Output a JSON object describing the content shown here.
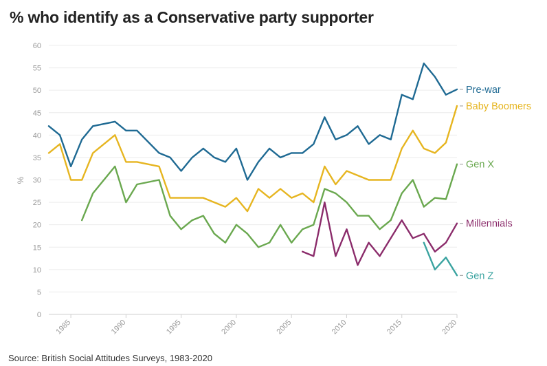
{
  "title": "% who identify as a Conservative party supporter",
  "source": "Source: British Social Attitudes Surveys, 1983-2020",
  "chart_data": {
    "type": "line",
    "title": "% who identify as a Conservative party supporter",
    "xlabel": "",
    "ylabel": "%",
    "xlim": [
      1983,
      2020
    ],
    "ylim": [
      0,
      60
    ],
    "grid": true,
    "legend": "direct labels at line ends (right)",
    "x_ticks": [
      1985,
      1990,
      1995,
      2000,
      2005,
      2010,
      2015,
      2020
    ],
    "y_ticks": [
      0,
      5,
      10,
      15,
      20,
      25,
      30,
      35,
      40,
      45,
      50,
      55,
      60
    ],
    "series": [
      {
        "name": "Pre-war",
        "color": "#1f6a93",
        "points": [
          [
            1983,
            42
          ],
          [
            1984,
            40
          ],
          [
            1985,
            33
          ],
          [
            1986,
            39
          ],
          [
            1987,
            42
          ],
          [
            1989,
            43
          ],
          [
            1990,
            41
          ],
          [
            1991,
            41
          ],
          [
            1993,
            36
          ],
          [
            1994,
            35
          ],
          [
            1995,
            32
          ],
          [
            1996,
            35
          ],
          [
            1997,
            37
          ],
          [
            1998,
            35
          ],
          [
            1999,
            34
          ],
          [
            2000,
            37
          ],
          [
            2001,
            30
          ],
          [
            2002,
            34
          ],
          [
            2003,
            37
          ],
          [
            2004,
            35
          ],
          [
            2005,
            36
          ],
          [
            2006,
            36
          ],
          [
            2007,
            38
          ],
          [
            2008,
            44
          ],
          [
            2009,
            39
          ],
          [
            2010,
            40
          ],
          [
            2011,
            42
          ],
          [
            2012,
            38
          ],
          [
            2013,
            40
          ],
          [
            2014,
            39
          ],
          [
            2015,
            49
          ],
          [
            2016,
            48
          ],
          [
            2017,
            56
          ],
          [
            2018,
            53
          ],
          [
            2019,
            49
          ],
          [
            2020,
            50.2
          ]
        ]
      },
      {
        "name": "Baby Boomers",
        "color": "#e6b520",
        "points": [
          [
            1983,
            36
          ],
          [
            1984,
            38
          ],
          [
            1985,
            30
          ],
          [
            1986,
            30
          ],
          [
            1987,
            36
          ],
          [
            1989,
            40
          ],
          [
            1990,
            34
          ],
          [
            1991,
            34
          ],
          [
            1993,
            33
          ],
          [
            1994,
            26
          ],
          [
            1995,
            26
          ],
          [
            1996,
            26
          ],
          [
            1997,
            26
          ],
          [
            1998,
            25
          ],
          [
            1999,
            24
          ],
          [
            2000,
            26
          ],
          [
            2001,
            23
          ],
          [
            2002,
            28
          ],
          [
            2003,
            26
          ],
          [
            2004,
            28
          ],
          [
            2005,
            26
          ],
          [
            2006,
            27
          ],
          [
            2007,
            25
          ],
          [
            2008,
            33
          ],
          [
            2009,
            29
          ],
          [
            2010,
            32
          ],
          [
            2011,
            31
          ],
          [
            2012,
            30
          ],
          [
            2013,
            30
          ],
          [
            2014,
            30
          ],
          [
            2015,
            37
          ],
          [
            2016,
            41
          ],
          [
            2017,
            37
          ],
          [
            2018,
            36
          ],
          [
            2019,
            38.3
          ],
          [
            2020,
            46.5
          ]
        ]
      },
      {
        "name": "Gen X",
        "color": "#6aa84f",
        "points": [
          [
            1986,
            21
          ],
          [
            1987,
            27
          ],
          [
            1989,
            33
          ],
          [
            1990,
            25
          ],
          [
            1991,
            29
          ],
          [
            1993,
            30
          ],
          [
            1994,
            22
          ],
          [
            1995,
            19
          ],
          [
            1996,
            21
          ],
          [
            1997,
            22
          ],
          [
            1998,
            18
          ],
          [
            1999,
            16
          ],
          [
            2000,
            20
          ],
          [
            2001,
            18
          ],
          [
            2002,
            15
          ],
          [
            2003,
            16
          ],
          [
            2004,
            20
          ],
          [
            2005,
            16
          ],
          [
            2006,
            19
          ],
          [
            2007,
            20
          ],
          [
            2008,
            28
          ],
          [
            2009,
            27
          ],
          [
            2010,
            25
          ],
          [
            2011,
            22
          ],
          [
            2012,
            22
          ],
          [
            2013,
            19
          ],
          [
            2014,
            21
          ],
          [
            2015,
            27
          ],
          [
            2016,
            30
          ],
          [
            2017,
            24
          ],
          [
            2018,
            26
          ],
          [
            2019,
            25.7
          ],
          [
            2020,
            33.5
          ]
        ]
      },
      {
        "name": "Millennials",
        "color": "#8b2c6b",
        "points": [
          [
            2006,
            14
          ],
          [
            2007,
            13
          ],
          [
            2008,
            25
          ],
          [
            2009,
            13
          ],
          [
            2010,
            19
          ],
          [
            2011,
            11
          ],
          [
            2012,
            16
          ],
          [
            2013,
            13
          ],
          [
            2015,
            21
          ],
          [
            2016,
            17
          ],
          [
            2017,
            18
          ],
          [
            2018,
            14
          ],
          [
            2019,
            16
          ],
          [
            2020,
            20.3
          ]
        ]
      },
      {
        "name": "Gen Z",
        "color": "#3aa3a0",
        "points": [
          [
            2017,
            16
          ],
          [
            2018,
            10
          ],
          [
            2019,
            12.7
          ],
          [
            2020,
            8.7
          ]
        ]
      }
    ]
  }
}
